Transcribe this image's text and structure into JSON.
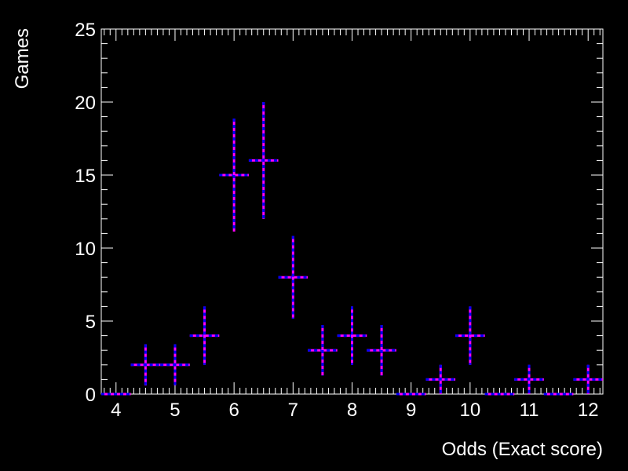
{
  "chart_data": {
    "type": "scatter",
    "xlabel": "Odds (Exact score)",
    "ylabel": "Games",
    "xlim": [
      3.75,
      12.25
    ],
    "ylim": [
      0,
      25
    ],
    "x_ticks": [
      "4",
      "5",
      "6",
      "7",
      "8",
      "9",
      "10",
      "11",
      "12"
    ],
    "y_ticks": [
      "0",
      "5",
      "10",
      "15",
      "20",
      "25"
    ],
    "bin_width": 0.5,
    "grid": false,
    "series": [
      {
        "x": [
          4,
          4.5,
          5,
          5.5,
          6,
          6.5,
          7,
          7.5,
          8,
          8.5,
          9,
          9.5,
          10,
          10.5,
          11,
          11.5,
          12
        ],
        "y": [
          0,
          2,
          2,
          4,
          15,
          16,
          8,
          3,
          4,
          3,
          0,
          1,
          4,
          0,
          1,
          0,
          1
        ],
        "y_err": [
          0,
          1.41,
          1.41,
          2,
          3.87,
          4,
          2.83,
          1.73,
          2,
          1.73,
          0,
          1,
          2,
          0,
          1,
          0,
          1
        ]
      }
    ],
    "colors": {
      "marker_a": "#ff00ff",
      "marker_b": "#0000ff",
      "frame": "#ffffff",
      "background": "#000000"
    }
  }
}
